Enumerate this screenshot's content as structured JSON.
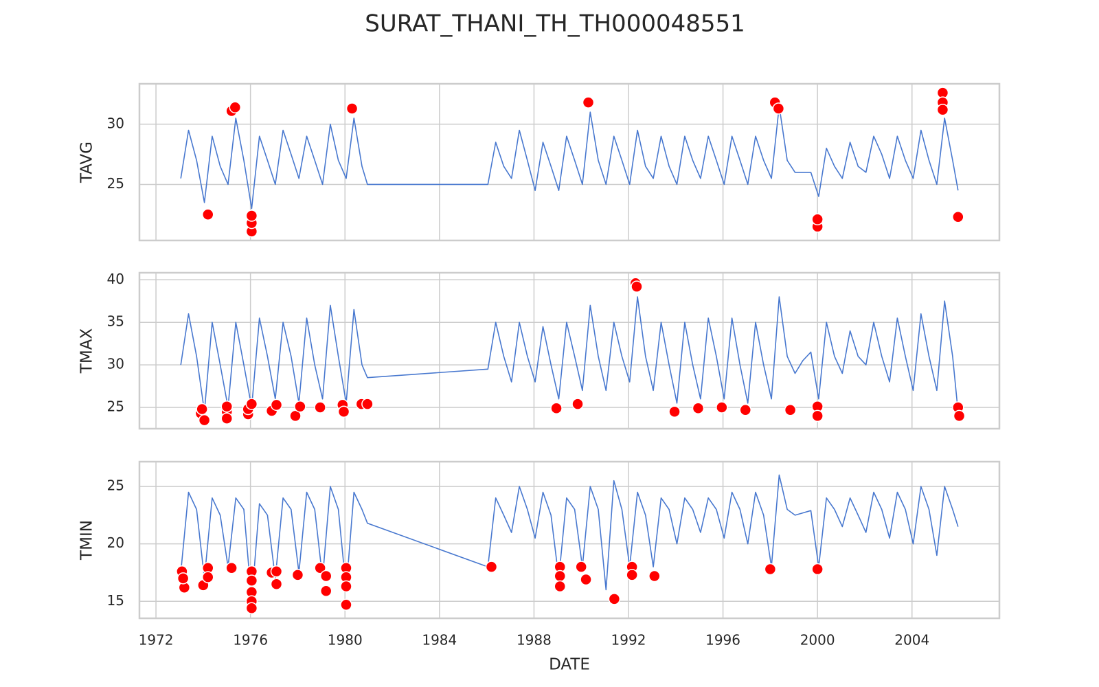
{
  "title": "SURAT_THANI_TH_TH000048551",
  "chart_data": [
    {
      "type": "line",
      "ylabel": "TAVG",
      "color": "#4878cf",
      "grid": true,
      "xlim": [
        1971.3,
        2007.7
      ],
      "xticks": [
        1972,
        1976,
        1980,
        1984,
        1988,
        1992,
        1996,
        2000,
        2004
      ],
      "ylim": [
        20.35,
        33.35
      ],
      "yticks": [
        25,
        30
      ],
      "x": [
        1973.05,
        1973.38,
        1973.72,
        1974.05,
        1974.38,
        1974.72,
        1975.05,
        1975.38,
        1975.72,
        1976.05,
        1976.38,
        1976.72,
        1977.05,
        1977.38,
        1977.72,
        1978.05,
        1978.38,
        1978.72,
        1979.05,
        1979.38,
        1979.72,
        1980.05,
        1980.38,
        1980.72,
        1980.95,
        1986.05,
        1986.38,
        1986.72,
        1987.05,
        1987.38,
        1987.72,
        1988.05,
        1988.38,
        1988.72,
        1989.05,
        1989.38,
        1989.72,
        1990.05,
        1990.38,
        1990.72,
        1991.05,
        1991.38,
        1991.72,
        1992.05,
        1992.38,
        1992.72,
        1993.05,
        1993.38,
        1993.72,
        1994.05,
        1994.38,
        1994.72,
        1995.05,
        1995.38,
        1995.72,
        1996.05,
        1996.38,
        1996.72,
        1997.05,
        1997.38,
        1997.72,
        1998.05,
        1998.38,
        1998.72,
        1999.05,
        1999.38,
        1999.72,
        2000.05,
        2000.38,
        2000.72,
        2001.05,
        2001.38,
        2001.72,
        2002.05,
        2002.38,
        2002.72,
        2003.05,
        2003.38,
        2003.72,
        2004.05,
        2004.38,
        2004.72,
        2005.05,
        2005.38,
        2005.72,
        2005.95
      ],
      "values": [
        25.5,
        29.5,
        27,
        23.5,
        29,
        26.5,
        25,
        30.5,
        27,
        23,
        29,
        27,
        25,
        29.5,
        27.5,
        25.5,
        29,
        27,
        25,
        30,
        27,
        25.5,
        30.5,
        26.5,
        25,
        25,
        28.5,
        26.5,
        25.5,
        29.5,
        27,
        24.5,
        28.5,
        26.5,
        24.5,
        29,
        27,
        25,
        31,
        27,
        25,
        29,
        27,
        25,
        29.5,
        26.5,
        25.5,
        29,
        26.5,
        25,
        29,
        27,
        25.5,
        29,
        27,
        25,
        29,
        27,
        25,
        29,
        27,
        25.5,
        31.5,
        27,
        26,
        26,
        26,
        24,
        28,
        26.5,
        25.5,
        28.5,
        26.5,
        26,
        29,
        27.5,
        25.5,
        29,
        27,
        25.5,
        29.5,
        27,
        25,
        30.5,
        27,
        24.5
      ],
      "outliers": {
        "color": "#ff0000",
        "x": [
          1974.2,
          1975.2,
          1975.35,
          1976.05,
          1976.05,
          1976.05,
          1980.3,
          1990.3,
          1998.2,
          1998.35,
          2000.0,
          2000.0,
          2005.3,
          2005.3,
          2005.3,
          2005.95
        ],
        "values": [
          22.5,
          31.1,
          31.4,
          21.1,
          21.8,
          22.4,
          31.3,
          31.8,
          31.8,
          31.3,
          21.5,
          22.1,
          32.6,
          31.8,
          31.2,
          22.3
        ]
      }
    },
    {
      "type": "line",
      "ylabel": "TMAX",
      "color": "#4878cf",
      "grid": true,
      "xlim": [
        1971.3,
        2007.7
      ],
      "xticks": [
        1972,
        1976,
        1980,
        1984,
        1988,
        1992,
        1996,
        2000,
        2004
      ],
      "ylim": [
        22.5,
        40.83
      ],
      "yticks": [
        25,
        30,
        35,
        40
      ],
      "x": [
        1973.05,
        1973.38,
        1973.72,
        1974.05,
        1974.38,
        1974.72,
        1975.05,
        1975.38,
        1975.72,
        1976.05,
        1976.38,
        1976.72,
        1977.05,
        1977.38,
        1977.72,
        1978.05,
        1978.38,
        1978.72,
        1979.05,
        1979.38,
        1979.72,
        1980.05,
        1980.38,
        1980.72,
        1980.95,
        1986.05,
        1986.38,
        1986.72,
        1987.05,
        1987.38,
        1987.72,
        1988.05,
        1988.38,
        1988.72,
        1989.05,
        1989.38,
        1989.72,
        1990.05,
        1990.38,
        1990.72,
        1991.05,
        1991.38,
        1991.72,
        1992.05,
        1992.38,
        1992.72,
        1993.05,
        1993.38,
        1993.72,
        1994.05,
        1994.38,
        1994.72,
        1995.05,
        1995.38,
        1995.72,
        1996.05,
        1996.38,
        1996.72,
        1997.05,
        1997.38,
        1997.72,
        1998.05,
        1998.38,
        1998.72,
        1999.05,
        1999.38,
        1999.72,
        2000.05,
        2000.38,
        2000.72,
        2001.05,
        2001.38,
        2001.72,
        2002.05,
        2002.38,
        2002.72,
        2003.05,
        2003.38,
        2003.72,
        2004.05,
        2004.38,
        2004.72,
        2005.05,
        2005.38,
        2005.72,
        2005.95
      ],
      "values": [
        30,
        36,
        31,
        24.5,
        35,
        30,
        25,
        35,
        30,
        25,
        35.5,
        31,
        26,
        35,
        31,
        25.5,
        35.5,
        30,
        26,
        37,
        31,
        25.5,
        36.5,
        30,
        28.5,
        29.5,
        35,
        31,
        28,
        35,
        31,
        28,
        34.5,
        30,
        26,
        35,
        31,
        27,
        37,
        31,
        27,
        35,
        31,
        28,
        38,
        31,
        27,
        35,
        30,
        25.5,
        35,
        30,
        26,
        35.5,
        31,
        26,
        35.5,
        30,
        25.5,
        35,
        30,
        26,
        38,
        31,
        29,
        30.5,
        31.5,
        26,
        35,
        31,
        29,
        34,
        31,
        30,
        35,
        31,
        28,
        35.5,
        31,
        27,
        36,
        31,
        27,
        37.5,
        31,
        24.5
      ],
      "outliers": {
        "color": "#ff0000",
        "x": [
          1973.9,
          1973.95,
          1974.05,
          1975.0,
          1975.0,
          1975.0,
          1975.9,
          1975.9,
          1976.05,
          1976.9,
          1977.1,
          1977.9,
          1978.1,
          1978.95,
          1979.9,
          1979.95,
          1980.7,
          1980.95,
          1988.95,
          1989.85,
          1992.3,
          1992.35,
          1993.95,
          1994.95,
          1995.95,
          1996.95,
          1998.85,
          2000.0,
          2000.0,
          2005.95,
          2006.0
        ],
        "values": [
          24.3,
          24.8,
          23.5,
          24.5,
          25.1,
          23.7,
          24.2,
          24.8,
          25.4,
          24.6,
          25.3,
          24.0,
          25.1,
          25.0,
          25.3,
          24.5,
          25.4,
          25.4,
          24.9,
          25.4,
          39.6,
          39.2,
          24.5,
          24.9,
          25.0,
          24.7,
          24.7,
          25.1,
          24.0,
          25.0,
          24.0
        ]
      }
    },
    {
      "type": "line",
      "ylabel": "TMIN",
      "xlabel": "DATE",
      "color": "#4878cf",
      "grid": true,
      "xlim": [
        1971.3,
        2007.7
      ],
      "xticks": [
        1972,
        1976,
        1980,
        1984,
        1988,
        1992,
        1996,
        2000,
        2004
      ],
      "ylim": [
        13.52,
        27.16
      ],
      "yticks": [
        15,
        20,
        25
      ],
      "x": [
        1973.05,
        1973.38,
        1973.72,
        1974.05,
        1974.38,
        1974.72,
        1975.05,
        1975.38,
        1975.72,
        1976.05,
        1976.38,
        1976.72,
        1977.05,
        1977.38,
        1977.72,
        1978.05,
        1978.38,
        1978.72,
        1979.05,
        1979.38,
        1979.72,
        1980.05,
        1980.38,
        1980.72,
        1980.95,
        1986.05,
        1986.38,
        1986.72,
        1987.05,
        1987.38,
        1987.72,
        1988.05,
        1988.38,
        1988.72,
        1989.05,
        1989.38,
        1989.72,
        1990.05,
        1990.38,
        1990.72,
        1991.05,
        1991.38,
        1991.72,
        1992.05,
        1992.38,
        1992.72,
        1993.05,
        1993.38,
        1993.72,
        1994.05,
        1994.38,
        1994.72,
        1995.05,
        1995.38,
        1995.72,
        1996.05,
        1996.38,
        1996.72,
        1997.05,
        1997.38,
        1997.72,
        1998.05,
        1998.38,
        1998.72,
        1999.05,
        1999.38,
        1999.72,
        2000.05,
        2000.38,
        2000.72,
        2001.05,
        2001.38,
        2001.72,
        2002.05,
        2002.38,
        2002.72,
        2003.05,
        2003.38,
        2003.72,
        2004.05,
        2004.38,
        2004.72,
        2005.05,
        2005.38,
        2005.72,
        2005.95
      ],
      "values": [
        17.5,
        24.5,
        23,
        17,
        24,
        22.5,
        18,
        24,
        23,
        15,
        23.5,
        22.5,
        17,
        24,
        23,
        17.5,
        24.5,
        23,
        17,
        25,
        23,
        16,
        24.5,
        23,
        21.8,
        18,
        24,
        22.5,
        21,
        25,
        23,
        20.5,
        24.5,
        22.5,
        17,
        24,
        23,
        18,
        25,
        23,
        16,
        25.5,
        23,
        18,
        24.5,
        22.5,
        18,
        24,
        23,
        20,
        24,
        23,
        21,
        24,
        23,
        20.5,
        24.5,
        23,
        20,
        24.5,
        22.5,
        18,
        26,
        23,
        22.5,
        22.7,
        22.9,
        18,
        24,
        23,
        21.5,
        24,
        22.5,
        21,
        24.5,
        23,
        20.5,
        24.5,
        23,
        20,
        25,
        23,
        19,
        25,
        23,
        21.5
      ],
      "outliers": {
        "color": "#ff0000",
        "x": [
          1973.1,
          1973.2,
          1973.15,
          1974.0,
          1974.2,
          1974.2,
          1975.2,
          1976.05,
          1976.05,
          1976.05,
          1976.05,
          1976.05,
          1976.9,
          1977.1,
          1977.1,
          1978.0,
          1978.95,
          1979.2,
          1979.2,
          1980.05,
          1980.05,
          1980.05,
          1980.05,
          1986.2,
          1989.1,
          1989.1,
          1989.1,
          1990.0,
          1990.2,
          1991.4,
          1992.15,
          1992.15,
          1993.1,
          1998.0,
          2000.0
        ],
        "values": [
          17.6,
          16.2,
          17.0,
          16.4,
          17.9,
          17.1,
          17.9,
          17.6,
          16.8,
          15.8,
          15.0,
          14.4,
          17.5,
          16.5,
          17.6,
          17.3,
          17.9,
          17.2,
          15.9,
          17.9,
          17.1,
          16.3,
          14.7,
          18.0,
          18.0,
          17.2,
          16.3,
          18.0,
          16.9,
          15.2,
          18.0,
          17.3,
          17.2,
          17.8,
          17.8
        ]
      }
    }
  ]
}
